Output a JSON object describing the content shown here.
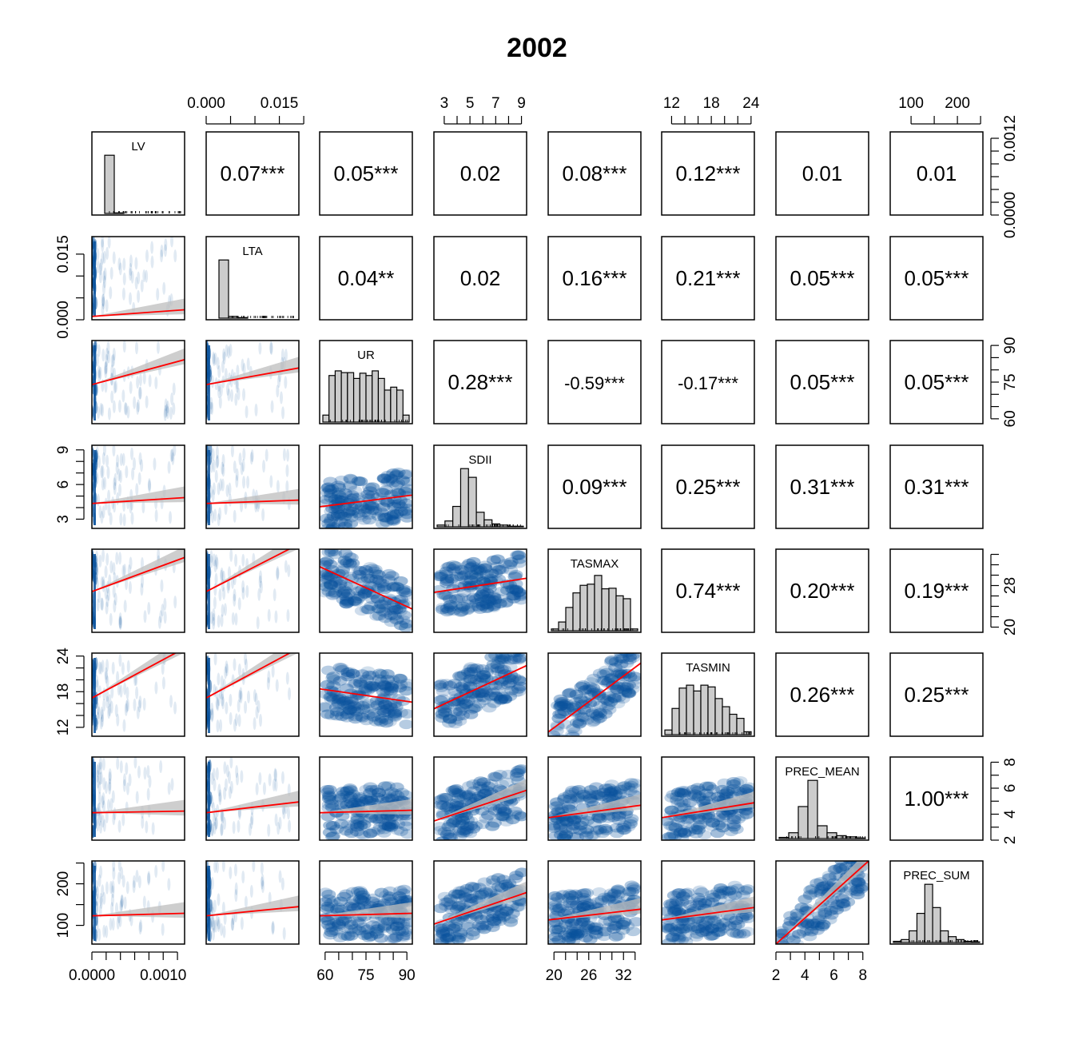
{
  "chart_data": {
    "type": "scatter",
    "subtype": "pairs-matrix",
    "title": "2002",
    "variables": [
      "LV",
      "LTA",
      "UR",
      "SDII",
      "TASMAX",
      "TASMIN",
      "PREC_MEAN",
      "PREC_SUM"
    ],
    "axis_ranges": {
      "LV": [
        0,
        0.0013
      ],
      "LTA": [
        0,
        0.019
      ],
      "UR": [
        58,
        92
      ],
      "SDII": [
        2.2,
        9.4
      ],
      "TASMAX": [
        19,
        35
      ],
      "TASMIN": [
        10.5,
        24.5
      ],
      "PREC_MEAN": [
        2,
        8.4
      ],
      "PREC_SUM": [
        55,
        255
      ]
    },
    "tick_labels": {
      "LV": [
        "0.0000",
        "0.0010"
      ],
      "LTA": [
        "0.000",
        "0.015"
      ],
      "UR": [
        "60",
        "75",
        "90"
      ],
      "SDII": [
        "3",
        "5",
        "7",
        "9"
      ],
      "SDII_left": [
        "3",
        "6",
        "9"
      ],
      "TASMAX": [
        "20",
        "26",
        "32"
      ],
      "TASMAX_right": [
        "20",
        "28"
      ],
      "TASMIN": [
        "12",
        "18",
        "24"
      ],
      "TASMIN_left": [
        "12",
        "18",
        "24"
      ],
      "PREC_MEAN": [
        "2",
        "4",
        "6",
        "8"
      ],
      "PREC_SUM": [
        "100",
        "200"
      ],
      "PREC_SUM_left": [
        "100",
        "200"
      ],
      "LV_right": [
        "0.0000",
        "0.0012"
      ],
      "UR_right": [
        "60",
        "75",
        "90"
      ],
      "LTA_left": [
        "0.000",
        "0.015"
      ]
    },
    "correlations": [
      {
        "row": 0,
        "col": 1,
        "label": "0.07***"
      },
      {
        "row": 0,
        "col": 2,
        "label": "0.05***"
      },
      {
        "row": 0,
        "col": 3,
        "label": "0.02"
      },
      {
        "row": 0,
        "col": 4,
        "label": "0.08***"
      },
      {
        "row": 0,
        "col": 5,
        "label": "0.12***"
      },
      {
        "row": 0,
        "col": 6,
        "label": "0.01"
      },
      {
        "row": 0,
        "col": 7,
        "label": "0.01"
      },
      {
        "row": 1,
        "col": 2,
        "label": "0.04**"
      },
      {
        "row": 1,
        "col": 3,
        "label": "0.02"
      },
      {
        "row": 1,
        "col": 4,
        "label": "0.16***"
      },
      {
        "row": 1,
        "col": 5,
        "label": "0.21***"
      },
      {
        "row": 1,
        "col": 6,
        "label": "0.05***"
      },
      {
        "row": 1,
        "col": 7,
        "label": "0.05***"
      },
      {
        "row": 2,
        "col": 3,
        "label": "0.28***"
      },
      {
        "row": 2,
        "col": 4,
        "label": "-0.59***"
      },
      {
        "row": 2,
        "col": 5,
        "label": "-0.17***"
      },
      {
        "row": 2,
        "col": 6,
        "label": "0.05***"
      },
      {
        "row": 2,
        "col": 7,
        "label": "0.05***"
      },
      {
        "row": 3,
        "col": 4,
        "label": "0.09***"
      },
      {
        "row": 3,
        "col": 5,
        "label": "0.25***"
      },
      {
        "row": 3,
        "col": 6,
        "label": "0.31***"
      },
      {
        "row": 3,
        "col": 7,
        "label": "0.31***"
      },
      {
        "row": 4,
        "col": 5,
        "label": "0.74***"
      },
      {
        "row": 4,
        "col": 6,
        "label": "0.20***"
      },
      {
        "row": 4,
        "col": 7,
        "label": "0.19***"
      },
      {
        "row": 5,
        "col": 6,
        "label": "0.26***"
      },
      {
        "row": 5,
        "col": 7,
        "label": "0.25***"
      },
      {
        "row": 6,
        "col": 7,
        "label": "1.00***"
      }
    ],
    "histograms": {
      "LV": [
        0,
        1,
        0.01,
        0,
        0,
        0,
        0,
        0,
        0
      ],
      "LTA": [
        0,
        1,
        0.03,
        0.01,
        0,
        0,
        0,
        0,
        0
      ],
      "UR": [
        0.12,
        0.8,
        0.88,
        0.85,
        0.85,
        0.75,
        0.84,
        0.8,
        0.88,
        0.75,
        0.55,
        0.6,
        0.55,
        0.12
      ],
      "SDII": [
        0.03,
        0.1,
        0.35,
        1.0,
        0.85,
        0.25,
        0.12,
        0.05,
        0.03,
        0.01,
        0.01
      ],
      "TASMAX": [
        0.03,
        0.15,
        0.4,
        0.65,
        0.78,
        0.8,
        0.95,
        0.72,
        0.73,
        0.6,
        0.55,
        0.03
      ],
      "TASMIN": [
        0.08,
        0.45,
        0.8,
        0.85,
        0.75,
        0.85,
        0.82,
        0.62,
        0.48,
        0.35,
        0.28,
        0.05
      ],
      "PREC_MEAN": [
        0.02,
        0.1,
        0.55,
        1.0,
        0.22,
        0.1,
        0.05,
        0.03,
        0.01
      ],
      "PREC_SUM": [
        0.02,
        0.05,
        0.2,
        0.5,
        1.0,
        0.6,
        0.2,
        0.1,
        0.05,
        0.02,
        0.01
      ]
    },
    "regression_lines": [
      {
        "row": 1,
        "col": 0,
        "y0": 0.04,
        "y1": 0.12
      },
      {
        "row": 2,
        "col": 0,
        "y0": 0.47,
        "y1": 0.77
      },
      {
        "row": 2,
        "col": 1,
        "y0": 0.47,
        "y1": 0.67
      },
      {
        "row": 3,
        "col": 0,
        "y0": 0.3,
        "y1": 0.37
      },
      {
        "row": 3,
        "col": 1,
        "y0": 0.3,
        "y1": 0.34
      },
      {
        "row": 3,
        "col": 2,
        "y0": 0.26,
        "y1": 0.4
      },
      {
        "row": 4,
        "col": 0,
        "y0": 0.49,
        "y1": 0.9
      },
      {
        "row": 4,
        "col": 1,
        "y0": 0.49,
        "y1": 1.06
      },
      {
        "row": 4,
        "col": 2,
        "y0": 0.79,
        "y1": 0.28
      },
      {
        "row": 4,
        "col": 3,
        "y0": 0.48,
        "y1": 0.65
      },
      {
        "row": 5,
        "col": 0,
        "y0": 0.46,
        "y1": 1.06
      },
      {
        "row": 5,
        "col": 1,
        "y0": 0.46,
        "y1": 1.06
      },
      {
        "row": 5,
        "col": 2,
        "y0": 0.57,
        "y1": 0.41
      },
      {
        "row": 5,
        "col": 3,
        "y0": 0.33,
        "y1": 0.85
      },
      {
        "row": 5,
        "col": 4,
        "y0": 0.05,
        "y1": 0.88
      },
      {
        "row": 6,
        "col": 0,
        "y0": 0.33,
        "y1": 0.35
      },
      {
        "row": 6,
        "col": 1,
        "y0": 0.33,
        "y1": 0.46
      },
      {
        "row": 6,
        "col": 2,
        "y0": 0.33,
        "y1": 0.36
      },
      {
        "row": 6,
        "col": 3,
        "y0": 0.23,
        "y1": 0.6
      },
      {
        "row": 6,
        "col": 4,
        "y0": 0.27,
        "y1": 0.42
      },
      {
        "row": 6,
        "col": 5,
        "y0": 0.27,
        "y1": 0.45
      },
      {
        "row": 7,
        "col": 0,
        "y0": 0.34,
        "y1": 0.37
      },
      {
        "row": 7,
        "col": 1,
        "y0": 0.34,
        "y1": 0.45
      },
      {
        "row": 7,
        "col": 2,
        "y0": 0.34,
        "y1": 0.37
      },
      {
        "row": 7,
        "col": 3,
        "y0": 0.24,
        "y1": 0.62
      },
      {
        "row": 7,
        "col": 4,
        "y0": 0.29,
        "y1": 0.42
      },
      {
        "row": 7,
        "col": 5,
        "y0": 0.29,
        "y1": 0.44
      },
      {
        "row": 7,
        "col": 6,
        "y0": 0.0,
        "y1": 1.0
      }
    ],
    "colors": {
      "density": "#08519c",
      "density_light": "#c6dbef",
      "line": "#ff0000",
      "band": "#bdbdbd",
      "bar": "#cccccc"
    }
  }
}
